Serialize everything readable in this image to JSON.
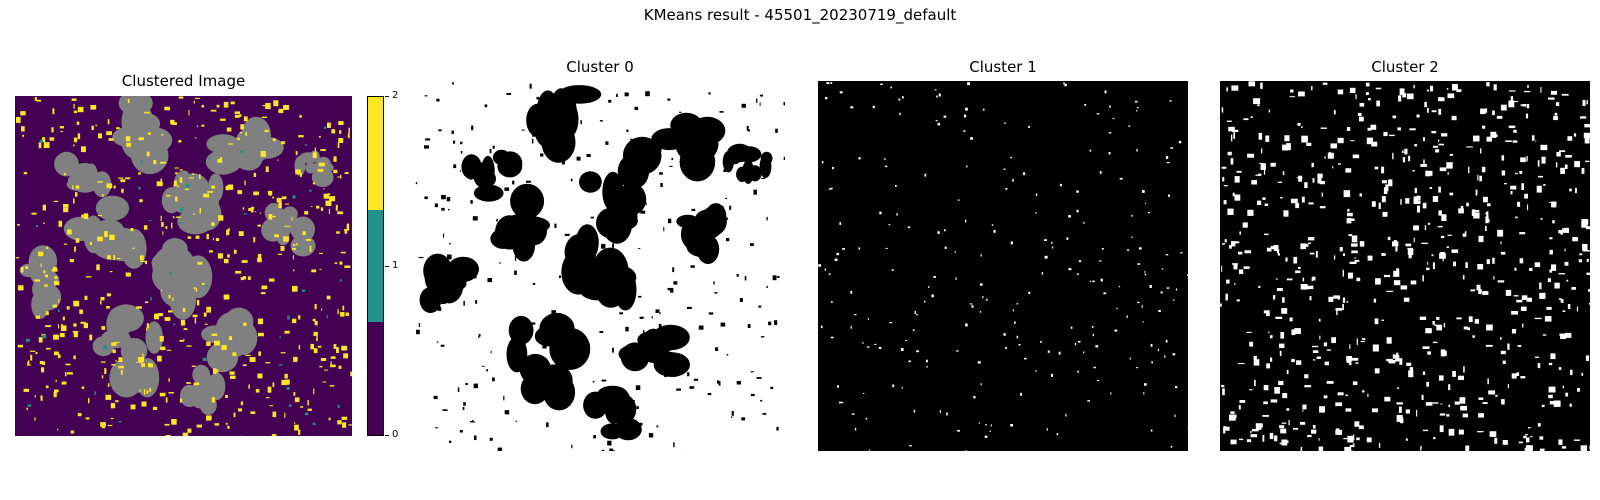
{
  "figure": {
    "suptitle": "KMeans result - 45501_20230719_default",
    "panels": [
      {
        "key": "clustered",
        "title": "Clustered Image"
      },
      {
        "key": "cluster0",
        "title": "Cluster 0"
      },
      {
        "key": "cluster1",
        "title": "Cluster 1"
      },
      {
        "key": "cluster2",
        "title": "Cluster 2"
      }
    ],
    "colorbar": {
      "ticks": [
        "0",
        "1",
        "2"
      ],
      "colors": {
        "c0": "#440154",
        "c1": "#21918c",
        "c2": "#fde725",
        "masked": "#808080"
      }
    },
    "mask_colors": {
      "background": "#000000",
      "foreground": "#ffffff"
    }
  }
}
